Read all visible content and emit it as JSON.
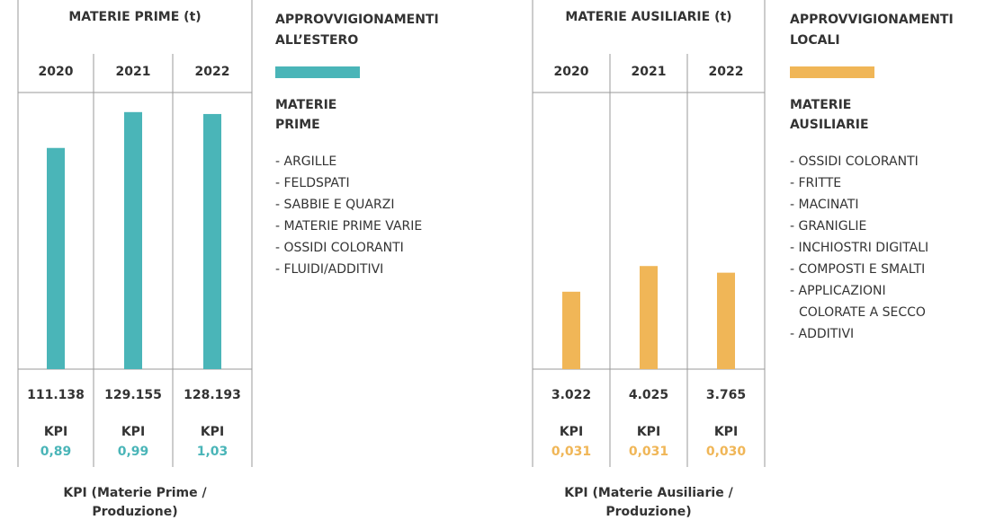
{
  "chart_data": [
    {
      "type": "bar",
      "title": "MATERIE PRIME (t)",
      "categories": [
        "2020",
        "2021",
        "2022"
      ],
      "values": [
        111138,
        129155,
        128193
      ],
      "value_labels": [
        "111.138",
        "129.155",
        "128.193"
      ],
      "color": "#4ab5b8",
      "ylim": [
        0,
        139000
      ],
      "kpi_label": "KPI",
      "kpi_values": [
        0.89,
        0.99,
        1.03
      ],
      "kpi_value_labels": [
        "0,89",
        "0,99",
        "1,03"
      ],
      "footnote": [
        "KPI (Materie Prime /",
        "Produzione)"
      ]
    },
    {
      "type": "bar",
      "title": "MATERIE AUSILIARIE (t)",
      "categories": [
        "2020",
        "2021",
        "2022"
      ],
      "values": [
        3022,
        4025,
        3765
      ],
      "value_labels": [
        "3.022",
        "4.025",
        "3.765"
      ],
      "color": "#f0b657",
      "ylim": [
        0,
        10800
      ],
      "kpi_label": "KPI",
      "kpi_values": [
        0.031,
        0.031,
        0.03
      ],
      "kpi_value_labels": [
        "0,031",
        "0,031",
        "0,030"
      ],
      "footnote": [
        "KPI (Materie Ausiliarie /",
        "Produzione)"
      ]
    }
  ],
  "panels": [
    {
      "title": [
        "APPROVVIGIONAMENTI",
        "ALL’ESTERO"
      ],
      "color": "#4ab5b8",
      "subtitle": [
        "MATERIE",
        "PRIME"
      ],
      "items": [
        "- ARGILLE",
        "- FELDSPATI",
        "- SABBIE E QUARZI",
        "- MATERIE PRIME VARIE",
        "- OSSIDI COLORANTI",
        "- FLUIDI/ADDITIVI"
      ]
    },
    {
      "title": [
        "APPROVVIGIONAMENTI",
        "LOCALI"
      ],
      "color": "#f0b657",
      "subtitle": [
        "MATERIE",
        "AUSILIARIE"
      ],
      "items": [
        "- OSSIDI COLORANTI",
        "- FRITTE",
        "- MACINATI",
        "- GRANIGLIE",
        "- INCHIOSTRI DIGITALI",
        "- COMPOSTI E SMALTI",
        "- APPLICAZIONI",
        "COLORATE A SECCO",
        "- ADDITIVI"
      ]
    }
  ]
}
